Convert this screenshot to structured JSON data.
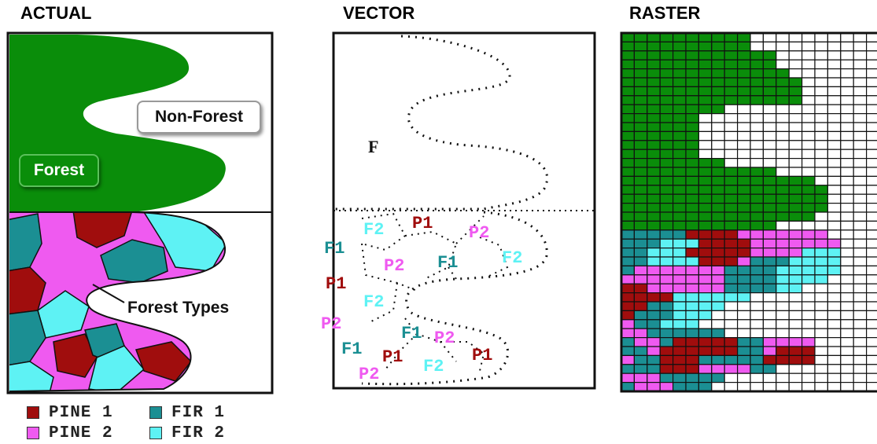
{
  "panels": {
    "actual": {
      "title": "ACTUAL",
      "label_forest": "Forest",
      "label_nonforest": "Non-Forest",
      "label_types": "Forest Types"
    },
    "vector": {
      "title": "VECTOR",
      "forest_label": "F",
      "polygon_labels": [
        "F2",
        "P1",
        "P2",
        "F1",
        "P2",
        "F1",
        "F2",
        "P1",
        "F2",
        "P2",
        "F1",
        "P2",
        "F1",
        "P1",
        "F2",
        "P1",
        "P2"
      ]
    },
    "raster": {
      "title": "RASTER"
    }
  },
  "legend": [
    {
      "label": "PINE 1",
      "color": "#a00d0d"
    },
    {
      "label": "FIR 1",
      "color": "#1b8f93"
    },
    {
      "label": "PINE 2",
      "color": "#ef5af0"
    },
    {
      "label": "FIR 2",
      "color": "#5ef2f4"
    }
  ],
  "colors": {
    "forest": "#0a8d0a",
    "pine1": "#a00d0d",
    "pine2": "#ef5af0",
    "fir1": "#1b8f93",
    "fir2": "#5ef2f4",
    "nonforest": "#ffffff"
  }
}
